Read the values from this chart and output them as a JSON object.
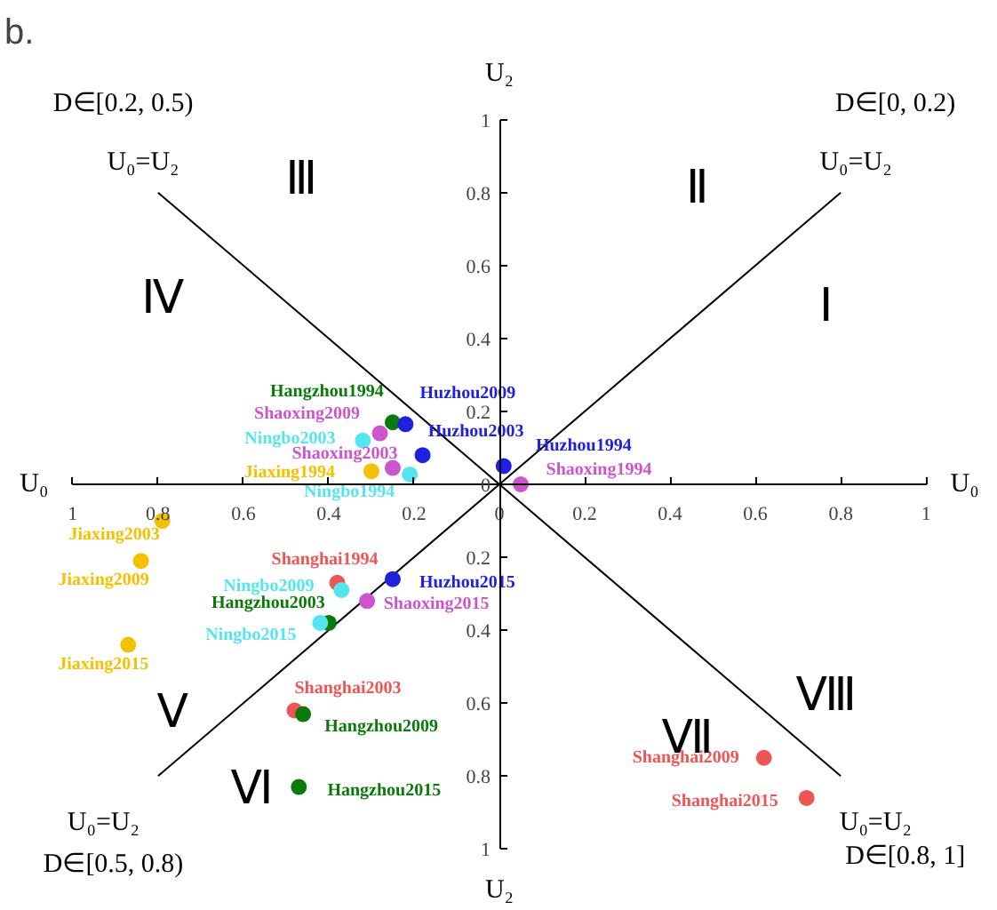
{
  "chart_data": {
    "type": "scatter",
    "title": "b.",
    "marker": "circle",
    "grid": false,
    "xlim": [
      -1,
      1
    ],
    "ylim": [
      -1,
      1
    ],
    "xticks": [
      {
        "value": -1,
        "label": "1"
      },
      {
        "value": -0.8,
        "label": "0.8"
      },
      {
        "value": -0.6,
        "label": "0.6"
      },
      {
        "value": -0.4,
        "label": "0.4"
      },
      {
        "value": -0.2,
        "label": "0.2"
      },
      0,
      0.2,
      0.4,
      0.6,
      0.8,
      1
    ],
    "yticks": [
      {
        "value": -1,
        "label": "1"
      },
      {
        "value": -0.8,
        "label": "0.8"
      },
      {
        "value": -0.6,
        "label": "0.6"
      },
      {
        "value": -0.4,
        "label": "0.4"
      },
      {
        "value": -0.2,
        "label": "0.2"
      },
      0,
      0.2,
      0.4,
      0.6,
      0.8,
      1
    ],
    "series": [
      {
        "type": "line",
        "marker": "none",
        "color": "#000000",
        "x": [
          -0.8,
          0.8
        ],
        "values": [
          -0.8,
          0.8
        ]
      },
      {
        "type": "line",
        "marker": "none",
        "color": "#000000",
        "x": [
          -0.8,
          0.8
        ],
        "values": [
          0.8,
          -0.8
        ]
      },
      {
        "name": "Hangzhou1994",
        "color": "#0a7a0a",
        "x": [
          -0.25
        ],
        "values": [
          0.17
        ]
      },
      {
        "name": "Huzhou2009",
        "color": "#2020e0",
        "x": [
          -0.22
        ],
        "values": [
          0.165
        ]
      },
      {
        "name": "Shaoxing2009",
        "color": "#cc55cc",
        "x": [
          -0.28
        ],
        "values": [
          0.14
        ]
      },
      {
        "name": "Ningbo2003",
        "color": "#55e5f0",
        "x": [
          -0.32
        ],
        "values": [
          0.12
        ]
      },
      {
        "name": "Huzhou2003",
        "color": "#2020e0",
        "x": [
          -0.18
        ],
        "values": [
          0.08
        ]
      },
      {
        "name": "Shaoxing2003",
        "color": "#cc55cc",
        "x": [
          -0.25
        ],
        "values": [
          0.045
        ]
      },
      {
        "name": "Jiaxing1994",
        "color": "#f5c000",
        "x": [
          -0.3
        ],
        "values": [
          0.036
        ]
      },
      {
        "name": "Ningbo1994",
        "color": "#55e5f0",
        "x": [
          -0.21
        ],
        "values": [
          0.027
        ]
      },
      {
        "name": "Huzhou1994",
        "color": "#2020e0",
        "x": [
          0.01
        ],
        "values": [
          0.05
        ]
      },
      {
        "name": "Shaoxing1994",
        "color": "#cc55cc",
        "x": [
          0.05
        ],
        "values": [
          0.0
        ]
      },
      {
        "name": "Jiaxing2003",
        "color": "#f5c000",
        "x": [
          -0.79
        ],
        "values": [
          -0.1
        ]
      },
      {
        "name": "Jiaxing2009",
        "color": "#f5c000",
        "x": [
          -0.84
        ],
        "values": [
          -0.21
        ]
      },
      {
        "name": "Jiaxing2015",
        "color": "#f5c000",
        "x": [
          -0.87
        ],
        "values": [
          -0.44
        ]
      },
      {
        "name": "Shanghai1994",
        "color": "#ee5555",
        "x": [
          -0.38
        ],
        "values": [
          -0.27
        ]
      },
      {
        "name": "Ningbo2009",
        "color": "#55e5f0",
        "x": [
          -0.37
        ],
        "values": [
          -0.29
        ]
      },
      {
        "name": "Huzhou2015",
        "color": "#2020e0",
        "x": [
          -0.25
        ],
        "values": [
          -0.26
        ]
      },
      {
        "name": "Shaoxing2015",
        "color": "#cc55cc",
        "x": [
          -0.31
        ],
        "values": [
          -0.32
        ]
      },
      {
        "name": "Hangzhou2003",
        "color": "#0a7a0a",
        "x": [
          -0.4
        ],
        "values": [
          -0.38
        ]
      },
      {
        "name": "Ningbo2015",
        "color": "#55e5f0",
        "x": [
          -0.42
        ],
        "values": [
          -0.38
        ]
      },
      {
        "name": "Shanghai2003",
        "color": "#ee5555",
        "x": [
          -0.48
        ],
        "values": [
          -0.62
        ]
      },
      {
        "name": "Hangzhou2009",
        "color": "#0a7a0a",
        "x": [
          -0.46
        ],
        "values": [
          -0.63
        ]
      },
      {
        "name": "Hangzhou2015",
        "color": "#0a7a0a",
        "x": [
          -0.47
        ],
        "values": [
          -0.83
        ]
      },
      {
        "name": "Shanghai2009",
        "color": "#ee5555",
        "x": [
          0.62
        ],
        "values": [
          -0.75
        ]
      },
      {
        "name": "Shanghai2015",
        "color": "#ee5555",
        "x": [
          0.72
        ],
        "values": [
          -0.86
        ]
      }
    ],
    "annotations": [
      "Ⅲ",
      "Ⅱ",
      "Ⅳ",
      "Ⅰ",
      "Ⅴ",
      "Ⅵ",
      "Ⅶ",
      "Ⅷ",
      "D∈[0.2, 0.5)",
      "D∈[0, 0.2)",
      "D∈[0.5, 0.8)",
      "D∈[0.8, 1]",
      "U₀=U₂",
      "U₀=U₂",
      "U₀=U₂",
      "U₀=U₂",
      "U₀",
      "U₀",
      "U₂",
      "U₂"
    ]
  }
}
